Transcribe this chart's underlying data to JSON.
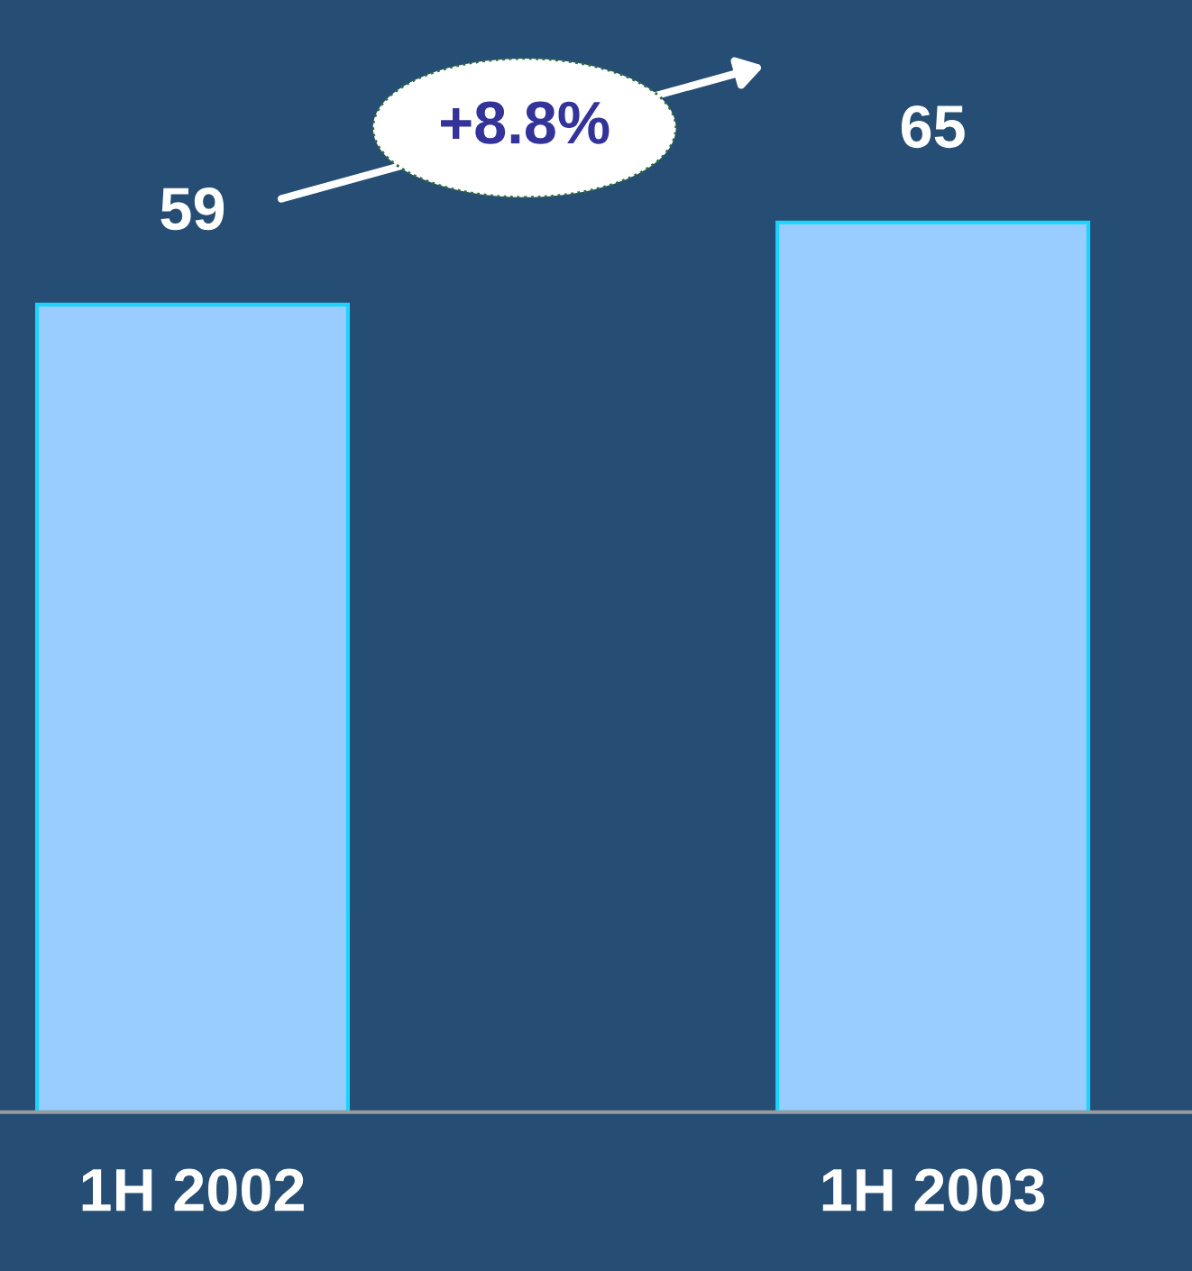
{
  "chart_data": {
    "type": "bar",
    "categories": [
      "1H 2002",
      "1H 2003"
    ],
    "values": [
      59,
      65
    ],
    "color": "#99ccff",
    "data_labels": true,
    "grid": false,
    "legend": false,
    "annotations": [
      "+8.8%"
    ]
  }
}
